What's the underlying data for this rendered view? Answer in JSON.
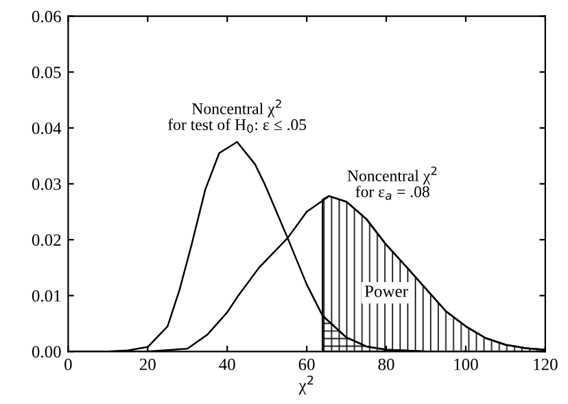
{
  "chart_data": {
    "type": "line",
    "xlabel": "χ$^{2}$",
    "series": [
      {
        "name": "Noncentral χ$^{2}$\nfor test of H$_{0}$: ε ≤ .05",
        "color": "#000000",
        "x": [
          0,
          10,
          15,
          20,
          25,
          28,
          31,
          34.5,
          38,
          42.5,
          47,
          49.4,
          55.2,
          60,
          64,
          70,
          75,
          80,
          90,
          100,
          120
        ],
        "values": [
          0,
          0,
          0.0002,
          0.0008,
          0.0045,
          0.011,
          0.019,
          0.029,
          0.0355,
          0.0375,
          0.0335,
          0.03,
          0.0203,
          0.012,
          0.0064,
          0.0025,
          0.0009,
          0.0003,
          0,
          0,
          0
        ]
      },
      {
        "name": "Noncentral χ$^{2}$\nfor ε$_{a}$ = .08",
        "color": "#000000",
        "x": [
          0,
          20,
          30,
          35,
          40,
          42.8,
          48,
          55.2,
          60,
          65.6,
          70,
          75,
          80,
          85,
          90,
          95,
          100,
          105,
          110,
          115,
          120
        ],
        "values": [
          0,
          0,
          0.0005,
          0.003,
          0.007,
          0.01,
          0.015,
          0.0203,
          0.025,
          0.0278,
          0.0268,
          0.0237,
          0.0191,
          0.0152,
          0.0112,
          0.0072,
          0.0045,
          0.0024,
          0.0012,
          0.0006,
          0.0003
        ]
      },
      {
        "type": "area",
        "color": "#000000",
        "x": [
          64,
          65.6,
          70,
          75,
          80,
          85,
          90,
          95,
          100,
          105,
          110,
          115,
          120
        ],
        "values": [
          0.0272,
          0.0278,
          0.0268,
          0.0237,
          0.0191,
          0.0152,
          0.0112,
          0.0072,
          0.0045,
          0.0024,
          0.0012,
          0.0006,
          0.0003
        ]
      },
      {
        "type": "area",
        "color": "#000000",
        "x": [
          64,
          70,
          75,
          80,
          90
        ],
        "values": [
          0.0064,
          0.0025,
          0.0009,
          0.0003,
          0
        ]
      }
    ],
    "annotations": [
      {
        "text": "Power",
        "x": 80,
        "y": 0.0105
      }
    ],
    "xlim": [
      0,
      120
    ],
    "xticks": [
      0,
      20,
      40,
      60,
      80,
      100,
      120
    ],
    "ylim": [
      0,
      0.06
    ],
    "yticks": [
      {
        "value": 0,
        "label": "0.00"
      },
      {
        "value": 0.01,
        "label": "0.01"
      },
      {
        "value": 0.02,
        "label": "0.02"
      },
      {
        "value": 0.03,
        "label": "0.03"
      },
      {
        "value": 0.04,
        "label": "0.04"
      },
      {
        "value": 0.05,
        "label": "0.05"
      },
      {
        "value": 0.06,
        "label": "0.06"
      }
    ],
    "grid": false,
    "legend": false
  }
}
